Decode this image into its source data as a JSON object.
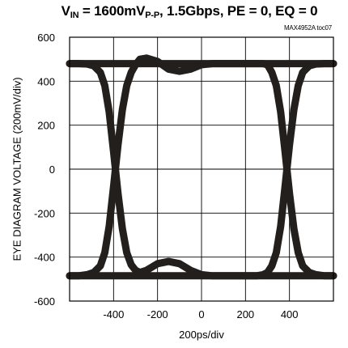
{
  "chart_data": {
    "type": "line",
    "title": {
      "prefix": "V",
      "sub": "IN",
      "rest": " = 1600mV",
      "sub2": "P-P",
      "suffix": ", 1.5Gbps, PE = 0, EQ = 0"
    },
    "toc_label": "MAX4952A toc07",
    "ylabel": "EYE DIAGRAM VOLTAGE (200mV/div)",
    "xlabel": "200ps/div",
    "ylim": [
      -600,
      600
    ],
    "xlim": [
      -600,
      600
    ],
    "y_ticks": [
      "600",
      "400",
      "200",
      "0",
      "-200",
      "-400",
      "-600"
    ],
    "y_tick_values": [
      600,
      400,
      200,
      0,
      -200,
      -400,
      -600
    ],
    "x_ticks": [
      "-400",
      "-200",
      "0",
      "200",
      "400"
    ],
    "x_tick_values": [
      -400,
      -200,
      0,
      200,
      400
    ],
    "y_grid_values": [
      600,
      400,
      200,
      0,
      -200,
      -400,
      -600
    ],
    "x_grid_values": [
      -600,
      -400,
      -200,
      0,
      200,
      400,
      600
    ],
    "grid": true,
    "trace_color": "#231f1c",
    "series": [
      {
        "x": [
          -600,
          600
        ],
        "y": [
          480,
          480
        ]
      },
      {
        "x": [
          -600,
          600
        ],
        "y": [
          -485,
          -485
        ]
      },
      {
        "x": [
          -600,
          -560,
          -520,
          -490,
          -460,
          -440,
          -420,
          -400,
          -380,
          -360,
          -340,
          -320,
          -300,
          -280,
          -250,
          -200,
          -150,
          -100,
          -50,
          0,
          50,
          100,
          150,
          200,
          250,
          280,
          300,
          320,
          340,
          360,
          380,
          400,
          420,
          440,
          460,
          490,
          520,
          560,
          600
        ],
        "y": [
          480,
          480,
          478,
          470,
          440,
          380,
          260,
          80,
          -110,
          -270,
          -380,
          -435,
          -460,
          -470,
          -460,
          -430,
          -420,
          -430,
          -460,
          -480,
          -485,
          -485,
          -485,
          -485,
          -485,
          -480,
          -470,
          -440,
          -380,
          -260,
          -80,
          110,
          270,
          380,
          440,
          470,
          478,
          480,
          480
        ]
      },
      {
        "x": [
          -600,
          -560,
          -520,
          -490,
          -460,
          -440,
          -420,
          -400,
          -380,
          -360,
          -340,
          -320,
          -300,
          -280,
          -250,
          -200,
          -150,
          -100,
          -50,
          0,
          50,
          100,
          150,
          200,
          250,
          280,
          300,
          320,
          340,
          360,
          380,
          400,
          420,
          440,
          460,
          490,
          520,
          560,
          600
        ],
        "y": [
          -485,
          -485,
          -480,
          -470,
          -440,
          -380,
          -260,
          -80,
          110,
          270,
          380,
          440,
          475,
          500,
          505,
          490,
          455,
          445,
          455,
          475,
          480,
          480,
          480,
          480,
          480,
          480,
          475,
          440,
          380,
          260,
          80,
          -110,
          -270,
          -380,
          -440,
          -470,
          -480,
          -485,
          -485
        ]
      }
    ]
  }
}
